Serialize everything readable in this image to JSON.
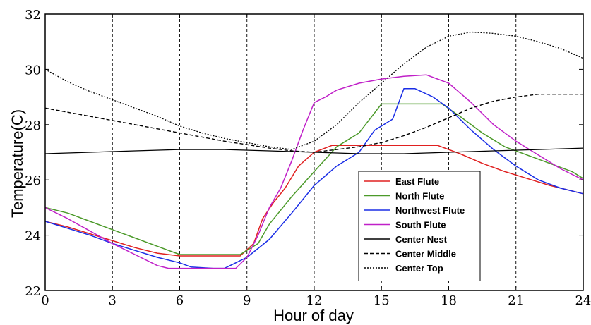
{
  "chart_data": {
    "type": "line",
    "title": "",
    "xlabel": "Hour of day",
    "ylabel": "Temperature(C)",
    "xlim": [
      0,
      24
    ],
    "ylim": [
      22,
      32
    ],
    "xticks": [
      0,
      3,
      6,
      9,
      12,
      15,
      18,
      21,
      24
    ],
    "yticks": [
      22,
      24,
      26,
      28,
      30,
      32
    ],
    "grid": "vertical dashed lines at x ticks",
    "legend_position": "lower-right",
    "series": [
      {
        "name": "East Flute",
        "color": "#e02020",
        "style": "solid",
        "x": [
          0,
          1,
          2,
          3,
          4,
          5,
          6,
          7,
          8,
          8.7,
          9.3,
          9.7,
          10.2,
          10.7,
          11.3,
          12,
          12.8,
          14,
          15,
          16,
          17.5,
          18.5,
          19.5,
          20.5,
          21.5,
          22.5,
          23.5,
          24
        ],
        "y": [
          24.5,
          24.3,
          24.05,
          23.8,
          23.55,
          23.35,
          23.25,
          23.25,
          23.25,
          23.25,
          23.7,
          24.6,
          25.2,
          25.7,
          26.5,
          27.0,
          27.25,
          27.25,
          27.25,
          27.25,
          27.25,
          26.95,
          26.6,
          26.3,
          26.05,
          25.8,
          25.6,
          25.5
        ]
      },
      {
        "name": "North Flute",
        "color": "#4c9a2a",
        "style": "solid",
        "x": [
          0,
          1,
          2,
          3,
          4,
          5,
          6,
          7,
          8,
          8.7,
          9.5,
          10,
          11,
          12,
          13,
          14,
          15,
          16,
          17.7,
          18.5,
          19.5,
          20.5,
          21.5,
          22.5,
          23.5,
          24
        ],
        "y": [
          25.0,
          24.8,
          24.5,
          24.2,
          23.9,
          23.6,
          23.3,
          23.3,
          23.3,
          23.3,
          23.7,
          24.4,
          25.4,
          26.3,
          27.2,
          27.7,
          28.75,
          28.75,
          28.75,
          28.3,
          27.7,
          27.2,
          26.9,
          26.6,
          26.3,
          26.05
        ]
      },
      {
        "name": "Northwest Flute",
        "color": "#1a2ee6",
        "style": "solid",
        "x": [
          0,
          1,
          2,
          3,
          4,
          5,
          6,
          6.5,
          7.5,
          8,
          8.5,
          9,
          10,
          11,
          12,
          13,
          14,
          14.7,
          15.5,
          16,
          16.5,
          17.3,
          18,
          19,
          20,
          21,
          22,
          23,
          24
        ],
        "y": [
          24.5,
          24.25,
          24.0,
          23.7,
          23.45,
          23.2,
          23.0,
          22.85,
          22.8,
          22.8,
          23.0,
          23.2,
          23.85,
          24.8,
          25.8,
          26.5,
          27.0,
          27.8,
          28.2,
          29.3,
          29.3,
          29.0,
          28.6,
          27.8,
          27.1,
          26.5,
          26.0,
          25.7,
          25.5
        ]
      },
      {
        "name": "South Flute",
        "color": "#c020c8",
        "style": "solid",
        "x": [
          0,
          1,
          2,
          3,
          4,
          5,
          5.5,
          6,
          7,
          8,
          8.5,
          9,
          9.5,
          10,
          10.5,
          11,
          11.5,
          12,
          12.5,
          13,
          14,
          15,
          16,
          17,
          18,
          19,
          20,
          21,
          22,
          23,
          24
        ],
        "y": [
          25.0,
          24.6,
          24.15,
          23.7,
          23.3,
          22.9,
          22.8,
          22.8,
          22.8,
          22.8,
          22.8,
          23.2,
          24.0,
          25.0,
          25.7,
          26.7,
          27.8,
          28.8,
          29.0,
          29.25,
          29.5,
          29.65,
          29.75,
          29.8,
          29.5,
          28.8,
          28.0,
          27.4,
          26.9,
          26.4,
          26.0
        ]
      },
      {
        "name": "Center Nest",
        "color": "#000000",
        "style": "solid",
        "x": [
          0,
          2,
          4,
          6,
          8,
          10,
          12,
          14,
          16,
          18,
          20,
          22,
          24
        ],
        "y": [
          26.95,
          27.0,
          27.05,
          27.1,
          27.1,
          27.05,
          27.0,
          26.95,
          26.95,
          27.0,
          27.05,
          27.1,
          27.15
        ]
      },
      {
        "name": "Center Middle",
        "color": "#000000",
        "style": "dashed",
        "x": [
          0,
          2,
          4,
          6,
          8,
          10,
          11,
          12,
          13,
          14,
          15,
          16,
          17,
          18,
          19,
          20,
          21,
          22,
          23,
          24
        ],
        "y": [
          28.6,
          28.3,
          28.0,
          27.7,
          27.4,
          27.15,
          27.05,
          27.0,
          27.1,
          27.2,
          27.35,
          27.6,
          27.9,
          28.25,
          28.6,
          28.85,
          29.0,
          29.1,
          29.1,
          29.1
        ]
      },
      {
        "name": "Center Top",
        "color": "#000000",
        "style": "dashdot",
        "x": [
          0,
          1,
          2,
          3,
          4,
          5,
          6,
          7,
          8,
          9,
          10,
          11,
          12,
          13,
          14,
          15,
          16,
          17,
          18,
          19,
          20,
          21,
          22,
          23,
          24
        ],
        "y": [
          30.0,
          29.55,
          29.2,
          28.9,
          28.6,
          28.3,
          27.95,
          27.7,
          27.5,
          27.35,
          27.2,
          27.1,
          27.4,
          28.0,
          28.8,
          29.5,
          30.2,
          30.8,
          31.2,
          31.35,
          31.3,
          31.2,
          31.0,
          30.75,
          30.4
        ]
      }
    ]
  }
}
